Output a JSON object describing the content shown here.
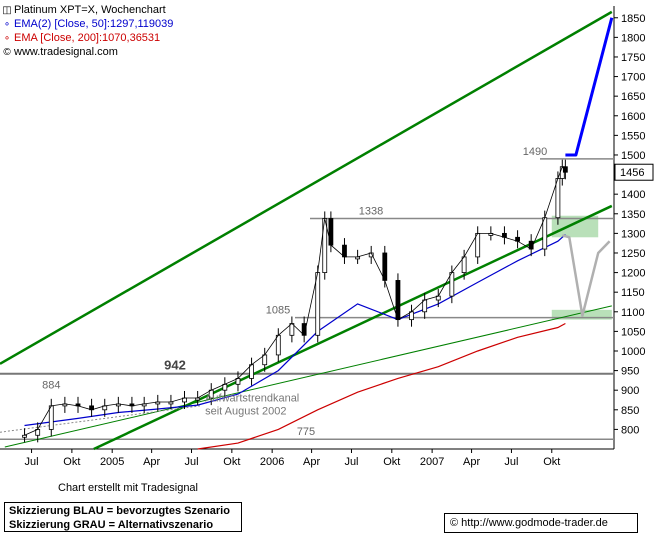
{
  "legend": {
    "title": "Platinum XPT=X, Wochenchart",
    "title_color": "#000000",
    "ema50": "EMA(2) [Close, 50]:1297,119039",
    "ema50_color": "#0000cc",
    "ema200": "EMA [Close, 200]:1070,36531",
    "ema200_color": "#cc0000",
    "website": "www.tradesignal.com"
  },
  "footer": {
    "made_with": "Chart erstellt mit Tradesignal",
    "note_line1": "Skizzierung BLAU = bevorzugtes Szenario",
    "note_line2": "Skizzierung GRAU = Alternativszenario",
    "credit": "http://www.godmode-trader.de",
    "credit_icon": "copyright-icon"
  },
  "chart_data": {
    "type": "candlestick",
    "title": "Platinum XPT=X, Wochenchart",
    "x_axis": {
      "tick_labels": [
        "Jul",
        "Okt",
        "2005",
        "Apr",
        "Jul",
        "Okt",
        "2006",
        "Apr",
        "Jul",
        "Okt",
        "2007",
        "Apr",
        "Jul",
        "Okt"
      ],
      "tick_dates": [
        "2004-07-01",
        "2004-10-01",
        "2005-01-01",
        "2005-04-01",
        "2005-07-01",
        "2005-10-01",
        "2006-01-01",
        "2006-04-01",
        "2006-07-01",
        "2006-10-01",
        "2007-01-01",
        "2007-04-01",
        "2007-07-01",
        "2007-10-01"
      ],
      "bold_ticks": [
        "2005",
        "2006",
        "2007"
      ]
    },
    "y_axis": {
      "ylim": [
        750,
        1880
      ],
      "tick_values": [
        800,
        850,
        900,
        950,
        1000,
        1050,
        1100,
        1150,
        1200,
        1250,
        1300,
        1350,
        1400,
        1450,
        1500,
        1550,
        1600,
        1650,
        1700,
        1750,
        1800,
        1850
      ],
      "side": "right",
      "current_price_label": "1456"
    },
    "series": [
      {
        "name": "Platinum XPT=X",
        "kind": "price",
        "color": "#000000",
        "x": [
          "2004-06-15",
          "2004-07-15",
          "2004-08-15",
          "2004-09-15",
          "2004-10-15",
          "2004-11-15",
          "2004-12-15",
          "2005-01-15",
          "2005-02-15",
          "2005-03-15",
          "2005-04-15",
          "2005-05-15",
          "2005-06-15",
          "2005-07-15",
          "2005-08-15",
          "2005-09-15",
          "2005-10-15",
          "2005-11-15",
          "2005-12-15",
          "2006-01-15",
          "2006-02-15",
          "2006-03-15",
          "2006-04-15",
          "2006-05-01",
          "2006-05-15",
          "2006-06-15",
          "2006-07-15",
          "2006-08-15",
          "2006-09-15",
          "2006-10-15",
          "2006-11-15",
          "2006-12-15",
          "2007-01-15",
          "2007-02-15",
          "2007-03-15",
          "2007-04-15",
          "2007-05-15",
          "2007-06-15",
          "2007-07-15",
          "2007-08-15",
          "2007-09-15",
          "2007-10-15",
          "2007-10-25",
          "2007-11-01"
        ],
        "y": [
          785,
          800,
          860,
          865,
          860,
          850,
          860,
          865,
          860,
          865,
          870,
          870,
          880,
          880,
          900,
          915,
          930,
          965,
          990,
          1040,
          1070,
          1040,
          1200,
          1338,
          1270,
          1240,
          1240,
          1250,
          1180,
          1080,
          1100,
          1130,
          1140,
          1200,
          1240,
          1300,
          1300,
          1290,
          1280,
          1260,
          1340,
          1440,
          1470,
          1456
        ]
      },
      {
        "name": "EMA(2) [Close, 50]",
        "kind": "ema",
        "color": "#0000cc",
        "x": [
          "2004-06-15",
          "2004-10-15",
          "2005-01-15",
          "2005-04-15",
          "2005-07-15",
          "2005-10-15",
          "2006-01-15",
          "2006-04-15",
          "2006-07-15",
          "2006-10-15",
          "2007-01-15",
          "2007-04-15",
          "2007-07-15",
          "2007-10-15",
          "2007-11-01"
        ],
        "y": [
          810,
          828,
          843,
          852,
          862,
          890,
          950,
          1050,
          1120,
          1080,
          1120,
          1175,
          1230,
          1280,
          1297
        ]
      },
      {
        "name": "EMA [Close, 200]",
        "kind": "ema",
        "color": "#cc0000",
        "x": [
          "2005-07-15",
          "2005-10-15",
          "2006-01-15",
          "2006-04-15",
          "2006-07-15",
          "2006-10-15",
          "2007-01-15",
          "2007-04-15",
          "2007-07-15",
          "2007-10-15",
          "2007-11-01"
        ],
        "y": [
          750,
          765,
          800,
          850,
          895,
          930,
          960,
          1000,
          1035,
          1060,
          1070
        ]
      }
    ],
    "horizontal_lines": [
      {
        "value": 775,
        "label": "775"
      },
      {
        "value": 942,
        "label": "942"
      },
      {
        "value": 1085,
        "label": "1085"
      },
      {
        "value": 1338,
        "label": "1338"
      },
      {
        "value": 1490,
        "label": "1490"
      }
    ],
    "price_labels": [
      {
        "value": 884,
        "label": "884",
        "x": "2004-08-15"
      }
    ],
    "trend_lines": [
      {
        "name": "upper channel",
        "color": "#008000",
        "x": [
          "2004-04-01",
          "2008-02-15"
        ],
        "y": [
          955,
          1865
        ]
      },
      {
        "name": "lower channel",
        "color": "#008000",
        "x": [
          "2004-11-01",
          "2008-02-15"
        ],
        "y": [
          740,
          1370
        ]
      },
      {
        "name": "lower trend",
        "color": "#008000",
        "x": [
          "2004-05-01",
          "2008-02-15"
        ],
        "y": [
          755,
          1115
        ]
      },
      {
        "name": "Aufwärtstrendkanal seit August 2002",
        "color": "#008000",
        "x": [
          "2004-04-01",
          "2005-07-20"
        ],
        "y": [
          790,
          860
        ]
      }
    ],
    "support_zones": [
      {
        "name": "zone-1338",
        "y_range": [
          1290,
          1345
        ],
        "x": [
          "2007-10-01",
          "2008-01-15"
        ],
        "color": "#a8d8a8"
      },
      {
        "name": "zone-1085",
        "y_range": [
          1080,
          1105
        ],
        "x": [
          "2007-10-01",
          "2008-02-15"
        ],
        "color": "#a8d8a8"
      }
    ],
    "scenarios": [
      {
        "name": "bevorzugtes Szenario",
        "color": "#0000ff",
        "x": [
          "2007-11-01",
          "2007-11-25",
          "2008-02-15"
        ],
        "y": [
          1500,
          1500,
          1850
        ]
      },
      {
        "name": "Alternativszenario",
        "color": "#b0b0b0",
        "x": [
          "2007-10-25",
          "2007-11-10",
          "2007-12-10",
          "2008-01-15",
          "2008-02-10"
        ],
        "y": [
          1295,
          1290,
          1090,
          1250,
          1280
        ]
      }
    ],
    "annotations": [
      {
        "text": "Aufwärtstrendkanal",
        "line2": "seit August 2002",
        "x": "2005-08-01",
        "y": 840
      }
    ]
  }
}
